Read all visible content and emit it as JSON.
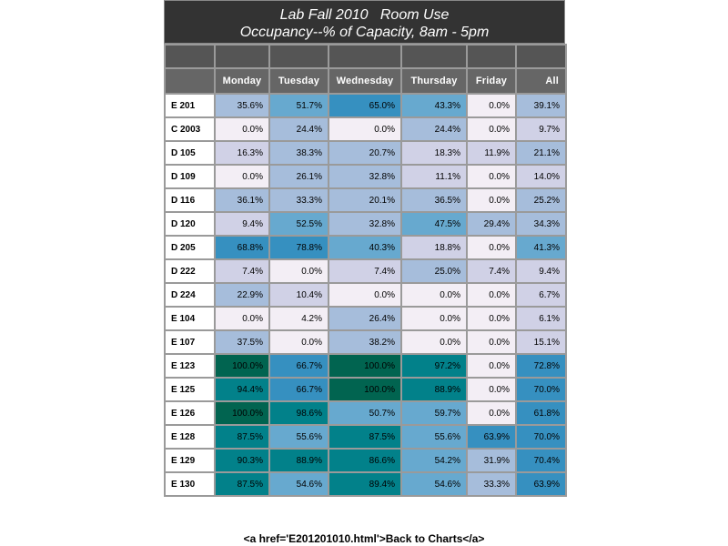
{
  "title": {
    "line1": "Lab Fall 2010   Room Use",
    "line2": "Occupancy--% of Capacity, 8am - 5pm"
  },
  "footer_text": "<a href='E201201010.html'>Back to Charts</a>",
  "chart_data": {
    "type": "table",
    "columns": [
      "Monday",
      "Tuesday",
      "Wednesday",
      "Thursday",
      "Friday",
      "All"
    ],
    "unit": "%",
    "rows": [
      {
        "room": "E 201",
        "values": [
          35.6,
          51.7,
          65.0,
          43.3,
          0.0,
          39.1
        ]
      },
      {
        "room": "C 2003",
        "values": [
          0.0,
          24.4,
          0.0,
          24.4,
          0.0,
          9.7
        ]
      },
      {
        "room": "D 105",
        "values": [
          16.3,
          38.3,
          20.7,
          18.3,
          11.9,
          21.1
        ]
      },
      {
        "room": "D 109",
        "values": [
          0.0,
          26.1,
          32.8,
          11.1,
          0.0,
          14.0
        ]
      },
      {
        "room": "D 116",
        "values": [
          36.1,
          33.3,
          20.1,
          36.5,
          0.0,
          25.2
        ]
      },
      {
        "room": "D 120",
        "values": [
          9.4,
          52.5,
          32.8,
          47.5,
          29.4,
          34.3
        ]
      },
      {
        "room": "D 205",
        "values": [
          68.8,
          78.8,
          40.3,
          18.8,
          0.0,
          41.3
        ]
      },
      {
        "room": "D 222",
        "values": [
          7.4,
          0.0,
          7.4,
          25.0,
          7.4,
          9.4
        ]
      },
      {
        "room": "D 224",
        "values": [
          22.9,
          10.4,
          0.0,
          0.0,
          0.0,
          6.7
        ]
      },
      {
        "room": "E 104",
        "values": [
          0.0,
          4.2,
          26.4,
          0.0,
          0.0,
          6.1
        ]
      },
      {
        "room": "E 107",
        "values": [
          37.5,
          0.0,
          38.2,
          0.0,
          0.0,
          15.1
        ]
      },
      {
        "room": "E 123",
        "values": [
          100.0,
          66.7,
          100.0,
          97.2,
          0.0,
          72.8
        ]
      },
      {
        "room": "E 125",
        "values": [
          94.4,
          66.7,
          100.0,
          88.9,
          0.0,
          70.0
        ]
      },
      {
        "room": "E 126",
        "values": [
          100.0,
          98.6,
          50.7,
          59.7,
          0.0,
          61.8
        ]
      },
      {
        "room": "E 128",
        "values": [
          87.5,
          55.6,
          87.5,
          55.6,
          63.9,
          70.0
        ]
      },
      {
        "room": "E 129",
        "values": [
          90.3,
          88.9,
          86.6,
          54.2,
          31.9,
          70.4
        ]
      },
      {
        "room": "E 130",
        "values": [
          87.5,
          54.6,
          89.4,
          54.6,
          33.3,
          63.9
        ]
      }
    ],
    "color_scale": [
      {
        "max": 5,
        "color": "#f3eef5"
      },
      {
        "max": 20,
        "color": "#d0d1e6"
      },
      {
        "max": 40,
        "color": "#a6bddb"
      },
      {
        "max": 60,
        "color": "#67a9cf"
      },
      {
        "max": 80,
        "color": "#3690c0"
      },
      {
        "max": 99,
        "color": "#02818a"
      },
      {
        "max": 100,
        "color": "#016450"
      }
    ]
  }
}
